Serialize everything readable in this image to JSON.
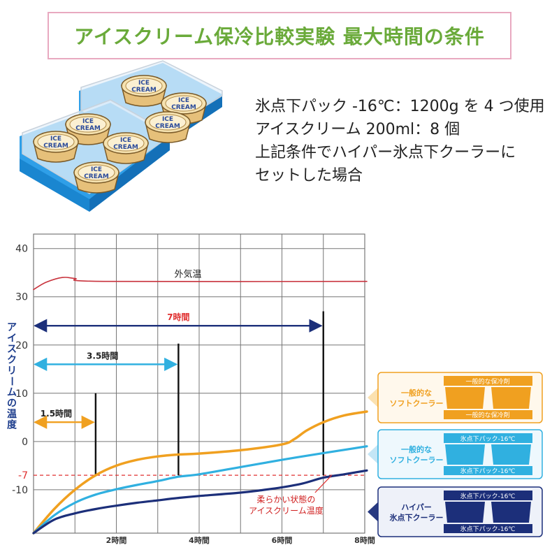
{
  "header": {
    "title": "アイスクリーム保冷比較実験 最大時間の条件"
  },
  "conditions": {
    "lines": [
      "氷点下パック -16℃：1200g を 4 つ使用",
      "アイスクリーム 200ml：8 個",
      "上記条件でハイパー氷点下クーラーに",
      "セットした場合"
    ]
  },
  "illustration": {
    "cup_label_line1": "ICE",
    "cup_label_line2": "CREAM"
  },
  "colors": {
    "title": "#6aaa3a",
    "title_border": "#e8a9c0",
    "outside": "#c8323c",
    "orange": "#f0a020",
    "lightblue": "#30b0e0",
    "navy": "#1c2f7a",
    "grid": "#777777",
    "threshold": "#e03030",
    "ylabel": "#1c3c8c",
    "tray": "#1f8fd8"
  },
  "chart_data": {
    "type": "line",
    "ylabel": "アイスクリームの温度",
    "xlim": [
      0,
      8
    ],
    "ylim": [
      -19,
      43
    ],
    "yticks": [
      40,
      30,
      20,
      10,
      0,
      -10
    ],
    "threshold_label": "-7",
    "xticks": [
      {
        "x": 2,
        "label": "2時間"
      },
      {
        "x": 4,
        "label": "4時間"
      },
      {
        "x": 6,
        "label": "6時間"
      },
      {
        "x": 8,
        "label": "8時間"
      }
    ],
    "threshold": -7,
    "series": [
      {
        "key": "outside",
        "name": "外気温",
        "x": [
          0,
          0.3,
          0.7,
          1.0,
          1.7,
          8.1
        ],
        "y": [
          31.5,
          33,
          34,
          33.8,
          33.2,
          33.2
        ]
      },
      {
        "key": "orange",
        "name": "一般的なソフトクーラー（一般的な保冷剤）",
        "x": [
          0,
          0.5,
          1.0,
          1.5,
          2.0,
          2.5,
          3.0,
          3.5,
          4.0,
          5.0,
          6.0,
          6.3,
          6.6,
          7.0,
          7.5,
          8.1
        ],
        "y": [
          -19,
          -14,
          -10,
          -7,
          -5,
          -3.8,
          -3.1,
          -2.7,
          -2.5,
          -1.8,
          -0.6,
          0.5,
          2.3,
          4,
          5.4,
          6.2
        ]
      },
      {
        "key": "lightblue",
        "name": "一般的なソフトクーラー（氷点下パック-16℃）",
        "x": [
          0,
          0.5,
          1.0,
          1.5,
          2.0,
          2.5,
          3.0,
          3.5,
          4.0,
          5.0,
          6.0,
          7.0,
          8.1
        ],
        "y": [
          -19,
          -15.3,
          -12.7,
          -11,
          -9.9,
          -9,
          -8.2,
          -7.3,
          -6.8,
          -5.3,
          -3.8,
          -2.4,
          -1
        ]
      },
      {
        "key": "navy",
        "name": "ハイパー氷点下クーラー（氷点下パック-16℃）",
        "x": [
          0,
          0.5,
          1.0,
          1.5,
          2.0,
          2.5,
          3.0,
          3.5,
          4.0,
          5.0,
          5.5,
          6.0,
          6.5,
          7.0,
          7.5,
          8.1
        ],
        "y": [
          -19,
          -16.2,
          -14.9,
          -14,
          -13.3,
          -12.7,
          -12.2,
          -11.7,
          -11.3,
          -10.6,
          -10.1,
          -9.5,
          -8.7,
          -7.5,
          -6.8,
          -6
        ]
      }
    ],
    "durations": [
      {
        "label": "1.5時間",
        "hours": 1.5,
        "y": 4,
        "bar_top": 10,
        "color": "#f0a020"
      },
      {
        "label": "3.5時間",
        "hours": 3.5,
        "y": 16,
        "bar_top": 20.3,
        "color": "#30b0e0"
      },
      {
        "label": "7時間",
        "hours": 7.0,
        "y": 24,
        "bar_top": 27,
        "color": "#1c2f7a",
        "label_color": "#e03030"
      }
    ],
    "annotations": {
      "outside_label": "外気温",
      "soft_line1": "柔らかい状態の",
      "soft_line2": "アイスクリーム温度"
    },
    "legend": [
      {
        "key": "orange",
        "name_line1": "一般的な",
        "name_line2": "ソフトクーラー",
        "top_label": "一般的な保冷剤",
        "bottom_label": "一般的な保冷剤"
      },
      {
        "key": "lightblue",
        "name_line1": "一般的な",
        "name_line2": "ソフトクーラー",
        "top_label": "氷点下パック-16℃",
        "bottom_label": "氷点下パック-16℃"
      },
      {
        "key": "navy",
        "name_line1": "ハイパー",
        "name_line2": "氷点下クーラー",
        "top_label": "氷点下パック-16℃",
        "bottom_label": "氷点下パック-16℃"
      }
    ]
  }
}
